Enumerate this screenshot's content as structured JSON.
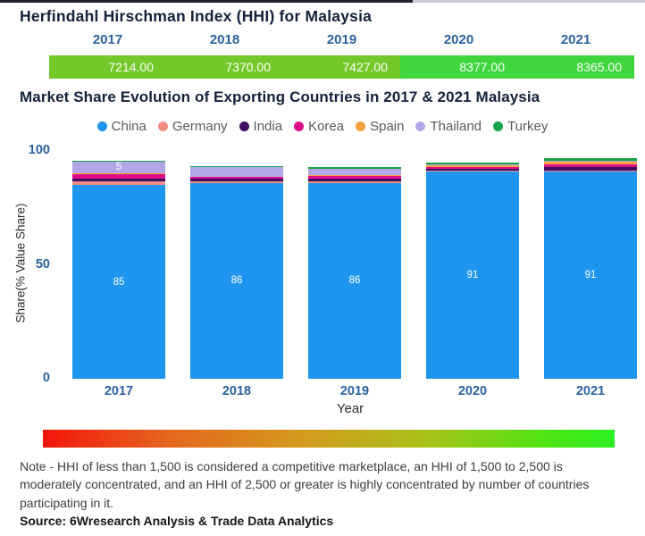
{
  "chart_data": [
    {
      "type": "table",
      "title": "Herfindahl Hirschman Index (HHI) for Malaysia",
      "categories": [
        "2017",
        "2018",
        "2019",
        "2020",
        "2021"
      ],
      "values": [
        7214.0,
        7370.0,
        7427.0,
        8377.0,
        8365.0
      ],
      "value_labels": [
        "7214.00",
        "7370.00",
        "7427.00",
        "8377.00",
        "8365.00"
      ],
      "cell_colors": [
        "#74C82A",
        "#74C82A",
        "#74C82A",
        "#3FD63E",
        "#3FD63E"
      ]
    },
    {
      "type": "bar",
      "stacked": true,
      "title": "Market Share Evolution of Exporting Countries in 2017 & 2021 Malaysia",
      "categories": [
        "2017",
        "2018",
        "2019",
        "2020",
        "2021"
      ],
      "series": [
        {
          "name": "China",
          "color": "#1E96F0",
          "values": [
            85,
            86,
            86,
            91,
            91
          ],
          "labels": [
            "85",
            "86",
            "86",
            "91",
            "91"
          ]
        },
        {
          "name": "Germany",
          "color": "#F28D85",
          "values": [
            1.5,
            0.5,
            0.5,
            0.3,
            0.5
          ],
          "labels": [
            null,
            null,
            null,
            null,
            null
          ]
        },
        {
          "name": "India",
          "color": "#3F0D63",
          "values": [
            1.5,
            1.5,
            1.5,
            1,
            1.5
          ],
          "labels": [
            null,
            null,
            null,
            null,
            null
          ]
        },
        {
          "name": "Korea",
          "color": "#E00D8A",
          "values": [
            2,
            0.5,
            1,
            0.8,
            1
          ],
          "labels": [
            null,
            null,
            null,
            null,
            null
          ]
        },
        {
          "name": "Spain",
          "color": "#F9A03F",
          "values": [
            0.3,
            0.3,
            0.5,
            0.8,
            1.5
          ],
          "labels": [
            null,
            null,
            null,
            null,
            null
          ]
        },
        {
          "name": "Thailand",
          "color": "#B3A6E8",
          "values": [
            5,
            4,
            2.5,
            0.3,
            0.3
          ],
          "labels": [
            "5",
            null,
            null,
            null,
            null
          ]
        },
        {
          "name": "Turkey",
          "color": "#17A348",
          "values": [
            0.3,
            0.5,
            1,
            0.8,
            1
          ],
          "labels": [
            null,
            null,
            null,
            null,
            null
          ]
        }
      ],
      "xlabel": "Year",
      "ylabel": "Share(% Value Share)",
      "yticks": [
        0,
        50,
        100
      ],
      "ylim": [
        0,
        100
      ],
      "legend_position": "top",
      "grid": false
    }
  ],
  "colors": {
    "axis_tick_blue": "#2A61A0",
    "title_navy": "#15223C",
    "legend_text_gray": "#58595B",
    "bar_label_white": "#ffffff"
  },
  "gradient_bar": {
    "stops": [
      "#F3140C 0%",
      "#E4671F 22%",
      "#D49A1E 45%",
      "#A6C41A 68%",
      "#4FE414 88%",
      "#2BF021 100%"
    ]
  },
  "note": {
    "text": "Note - HHI of less than 1,500 is considered a competitive marketplace, an HHI of 1,500 to 2,500 is moderately concentrated, and an HHI of 2,500 or greater is highly concentrated by number of countries participating in it."
  },
  "source": {
    "text": "Source: 6Wresearch Analysis & Trade Data Analytics"
  }
}
